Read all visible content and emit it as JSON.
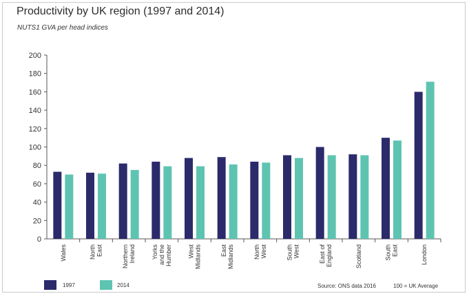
{
  "chart_data": {
    "type": "bar",
    "title": "Productivity by UK region (1997 and 2014)",
    "subtitle": "NUTS1 GVA per head indices",
    "categories": [
      [
        "Wales"
      ],
      [
        "North",
        "East"
      ],
      [
        "Northern",
        "Ireland"
      ],
      [
        "Yorks",
        "and the",
        "Humber"
      ],
      [
        "West",
        "Midlands"
      ],
      [
        "East",
        "Midlands"
      ],
      [
        "North",
        "West"
      ],
      [
        "South",
        "West"
      ],
      [
        "East of",
        "England"
      ],
      [
        "Scotland"
      ],
      [
        "South",
        "East"
      ],
      [
        "London"
      ]
    ],
    "series": [
      {
        "name": "1997",
        "color": "#2b2a6b",
        "values": [
          73,
          72,
          82,
          84,
          88,
          89,
          84,
          91,
          100,
          92,
          110,
          160
        ]
      },
      {
        "name": "2014",
        "color": "#5ec4b1",
        "values": [
          70,
          71,
          75,
          79,
          79,
          81,
          83,
          88,
          91,
          91,
          107,
          171
        ]
      }
    ],
    "ylim": [
      0,
      200
    ],
    "yticks": [
      0,
      20,
      40,
      60,
      80,
      100,
      120,
      140,
      160,
      180,
      200
    ],
    "grid": false,
    "legend_position": "bottom-left"
  },
  "footer": {
    "source": "Source: ONS data 2016",
    "note": "100 = UK Average"
  }
}
